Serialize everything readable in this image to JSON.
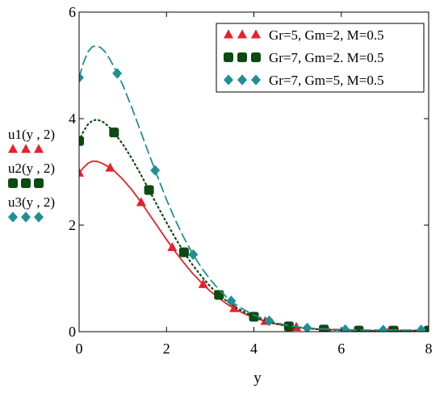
{
  "chart_data": {
    "type": "line",
    "xlabel": "y",
    "ylabel_lines": [
      {
        "text": "u1(y , 2)",
        "series": 0
      },
      {
        "text": "u2(y , 2)",
        "series": 1
      },
      {
        "text": "u3(y , 2)",
        "series": 2
      }
    ],
    "xlim": [
      0,
      8
    ],
    "ylim": [
      0,
      6
    ],
    "x_ticks": [
      {
        "value": 0,
        "label": "0"
      },
      {
        "value": 2,
        "label": "2"
      },
      {
        "value": 4,
        "label": "4"
      },
      {
        "value": 6,
        "label": "6"
      },
      {
        "value": 8,
        "label": "8"
      }
    ],
    "y_ticks": [
      {
        "value": 0,
        "label": "0"
      },
      {
        "value": 2,
        "label": "2"
      },
      {
        "value": 4,
        "label": "4"
      },
      {
        "value": 6,
        "label": "6"
      }
    ],
    "grid": false,
    "legend_position": "top-right",
    "series": [
      {
        "name": "Gr=5, Gm=2, M=0.5",
        "color": "#e8202a",
        "marker": "triangle",
        "line_style": "solid",
        "points": [
          [
            0,
            2.98
          ],
          [
            0.1,
            3.08
          ],
          [
            0.2,
            3.16
          ],
          [
            0.3,
            3.2
          ],
          [
            0.4,
            3.2
          ],
          [
            0.5,
            3.17
          ],
          [
            0.6,
            3.13
          ],
          [
            0.7,
            3.08
          ],
          [
            0.8,
            3.02
          ],
          [
            1.0,
            2.86
          ],
          [
            1.2,
            2.67
          ],
          [
            1.4,
            2.45
          ],
          [
            1.6,
            2.21
          ],
          [
            1.8,
            1.97
          ],
          [
            2.0,
            1.73
          ],
          [
            2.2,
            1.5
          ],
          [
            2.4,
            1.29
          ],
          [
            2.6,
            1.09
          ],
          [
            2.8,
            0.92
          ],
          [
            3.0,
            0.76
          ],
          [
            3.2,
            0.63
          ],
          [
            3.4,
            0.51
          ],
          [
            3.6,
            0.41
          ],
          [
            3.8,
            0.33
          ],
          [
            4.0,
            0.26
          ],
          [
            4.4,
            0.16
          ],
          [
            4.8,
            0.1
          ],
          [
            5.2,
            0.06
          ],
          [
            5.6,
            0.04
          ],
          [
            6.0,
            0.03
          ],
          [
            6.4,
            0.02
          ],
          [
            7.0,
            0.02
          ],
          [
            7.5,
            0.02
          ],
          [
            8.0,
            0.02
          ]
        ],
        "markers_x": [
          0,
          0.71,
          1.42,
          2.13,
          2.84,
          3.55,
          4.26,
          4.97,
          5.68,
          6.39,
          7.1,
          7.8
        ]
      },
      {
        "name": "Gr=7, Gm=2. M=0.5",
        "color": "#0d4a12",
        "marker": "square",
        "line_style": "dotted",
        "points": [
          [
            0,
            3.58
          ],
          [
            0.1,
            3.76
          ],
          [
            0.2,
            3.89
          ],
          [
            0.3,
            3.96
          ],
          [
            0.4,
            3.98
          ],
          [
            0.5,
            3.96
          ],
          [
            0.6,
            3.91
          ],
          [
            0.7,
            3.83
          ],
          [
            0.8,
            3.74
          ],
          [
            1.0,
            3.52
          ],
          [
            1.2,
            3.26
          ],
          [
            1.4,
            2.97
          ],
          [
            1.6,
            2.66
          ],
          [
            1.8,
            2.35
          ],
          [
            2.0,
            2.05
          ],
          [
            2.2,
            1.76
          ],
          [
            2.4,
            1.49
          ],
          [
            2.6,
            1.25
          ],
          [
            2.8,
            1.04
          ],
          [
            3.0,
            0.85
          ],
          [
            3.2,
            0.69
          ],
          [
            3.4,
            0.56
          ],
          [
            3.6,
            0.45
          ],
          [
            3.8,
            0.36
          ],
          [
            4.0,
            0.28
          ],
          [
            4.4,
            0.17
          ],
          [
            4.8,
            0.1
          ],
          [
            5.2,
            0.06
          ],
          [
            5.6,
            0.04
          ],
          [
            6.0,
            0.03
          ],
          [
            6.4,
            0.02
          ],
          [
            7.0,
            0.02
          ],
          [
            7.5,
            0.02
          ],
          [
            8.0,
            0.02
          ]
        ],
        "markers_x": [
          0,
          0.8,
          1.6,
          2.4,
          3.2,
          4.0,
          4.8,
          5.6,
          6.4,
          7.2,
          8.0
        ]
      },
      {
        "name": "Gr=7, Gm=5, M=0.5",
        "color": "#1f8f94",
        "marker": "diamond",
        "line_style": "dashed",
        "points": [
          [
            0,
            4.77
          ],
          [
            0.1,
            5.05
          ],
          [
            0.2,
            5.25
          ],
          [
            0.3,
            5.35
          ],
          [
            0.4,
            5.37
          ],
          [
            0.5,
            5.33
          ],
          [
            0.6,
            5.25
          ],
          [
            0.7,
            5.12
          ],
          [
            0.8,
            4.97
          ],
          [
            1.0,
            4.63
          ],
          [
            1.2,
            4.22
          ],
          [
            1.4,
            3.78
          ],
          [
            1.6,
            3.33
          ],
          [
            1.8,
            2.9
          ],
          [
            2.0,
            2.48
          ],
          [
            2.2,
            2.1
          ],
          [
            2.4,
            1.76
          ],
          [
            2.6,
            1.46
          ],
          [
            2.8,
            1.2
          ],
          [
            3.0,
            0.98
          ],
          [
            3.2,
            0.79
          ],
          [
            3.4,
            0.63
          ],
          [
            3.6,
            0.5
          ],
          [
            3.8,
            0.4
          ],
          [
            4.0,
            0.31
          ],
          [
            4.4,
            0.19
          ],
          [
            4.8,
            0.11
          ],
          [
            5.2,
            0.07
          ],
          [
            5.6,
            0.05
          ],
          [
            6.0,
            0.04
          ],
          [
            6.4,
            0.03
          ],
          [
            7.0,
            0.03
          ],
          [
            7.5,
            0.03
          ],
          [
            8.0,
            0.03
          ]
        ],
        "markers_x": [
          0,
          0.87,
          1.74,
          2.61,
          3.48,
          4.35,
          5.22,
          6.09,
          6.96,
          7.83
        ]
      }
    ]
  }
}
